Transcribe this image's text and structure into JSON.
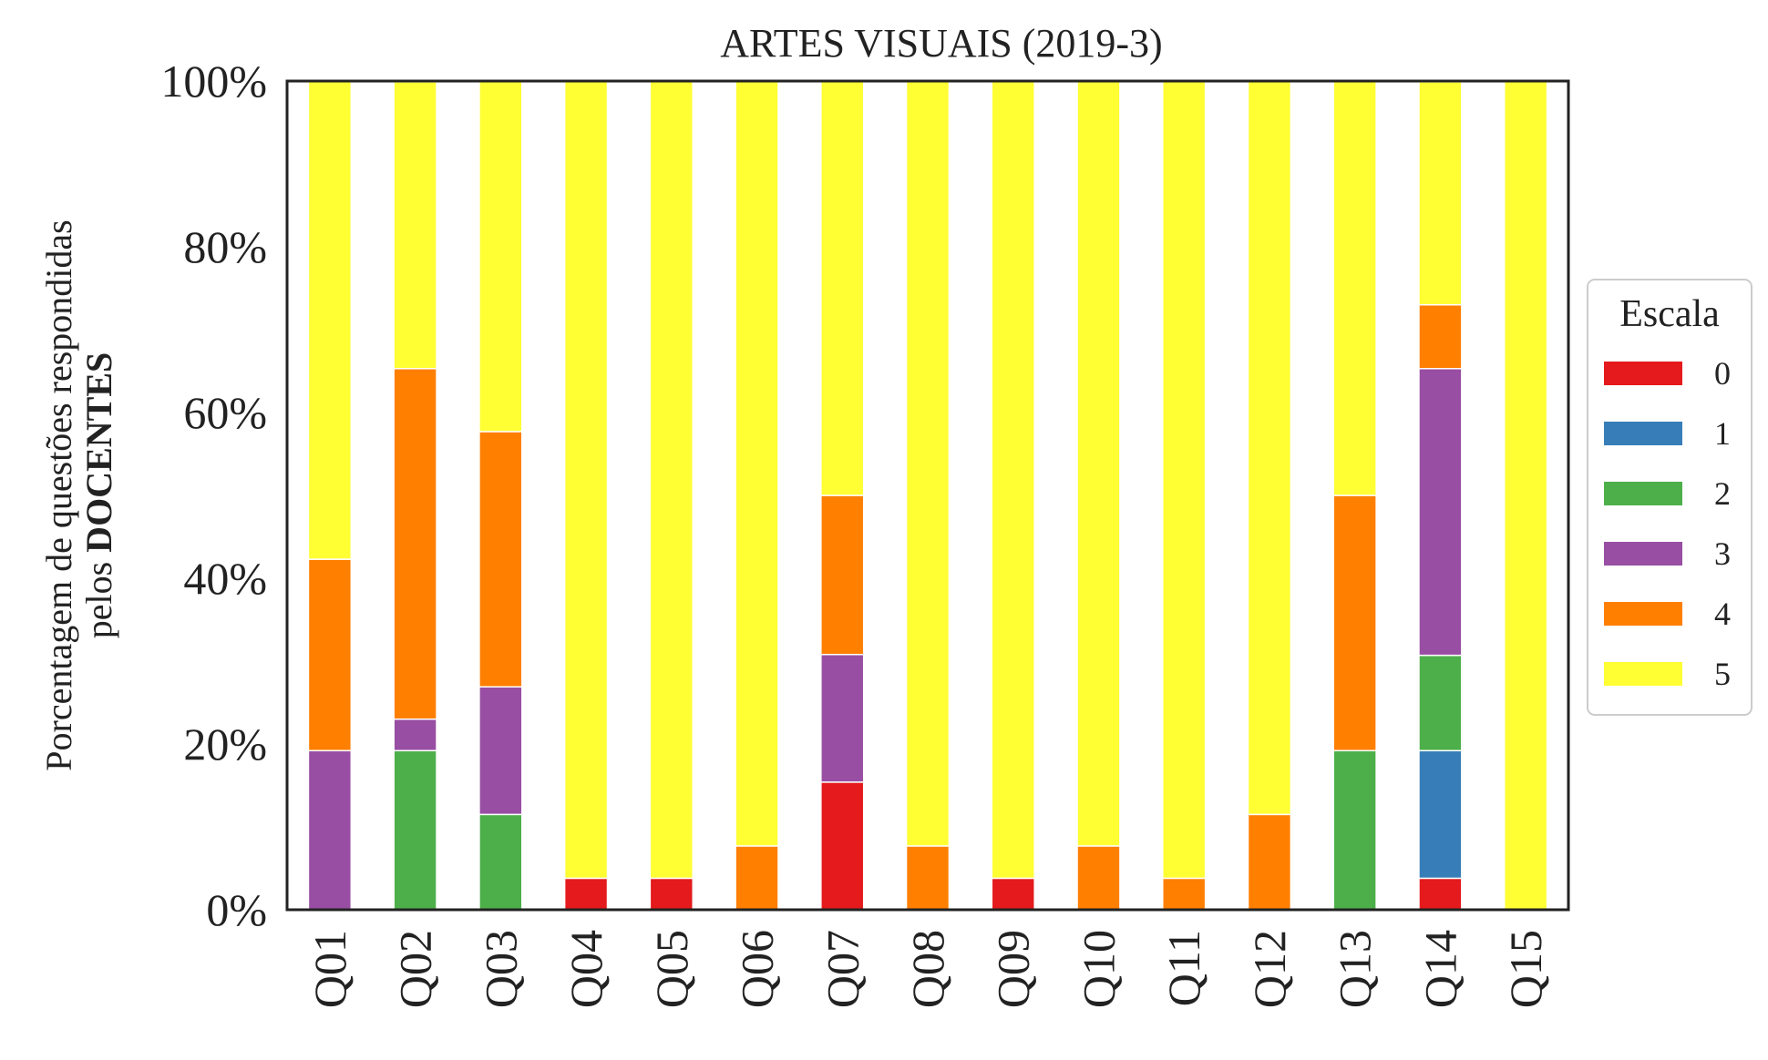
{
  "chart_data": {
    "type": "bar",
    "stacked": true,
    "title": "ARTES VISUAIS (2019-3)",
    "ylabel_line1": "Porcentagem de questões respondidas",
    "ylabel_line2_prefix": "pelos ",
    "ylabel_line2_bold": "DOCENTES",
    "xlabel": "",
    "ylim": [
      0,
      100
    ],
    "yticks": [
      "0%",
      "20%",
      "40%",
      "60%",
      "80%",
      "100%"
    ],
    "grid": false,
    "legend_title": "Escala",
    "legend_position": "right",
    "categories": [
      "Q01",
      "Q02",
      "Q03",
      "Q04",
      "Q05",
      "Q06",
      "Q07",
      "Q08",
      "Q09",
      "Q10",
      "Q11",
      "Q12",
      "Q13",
      "Q14",
      "Q15"
    ],
    "series": [
      {
        "name": "0",
        "color": "#e41a1c",
        "values": [
          0,
          0,
          0,
          3.8,
          3.8,
          0,
          15.4,
          0,
          3.8,
          0,
          0,
          0,
          0,
          3.8,
          0
        ]
      },
      {
        "name": "1",
        "color": "#377eb8",
        "values": [
          0,
          0,
          0,
          0,
          0,
          0,
          0,
          0,
          0,
          0,
          0,
          0,
          0,
          15.4,
          0
        ]
      },
      {
        "name": "2",
        "color": "#4daf4a",
        "values": [
          0,
          19.2,
          11.5,
          0,
          0,
          0,
          0,
          0,
          0,
          0,
          0,
          0,
          19.2,
          11.5,
          0
        ]
      },
      {
        "name": "3",
        "color": "#984ea3",
        "values": [
          19.2,
          3.8,
          15.4,
          0,
          0,
          0,
          15.4,
          0,
          0,
          0,
          0,
          0,
          0,
          34.6,
          0
        ]
      },
      {
        "name": "4",
        "color": "#ff7f00",
        "values": [
          23.1,
          42.3,
          30.8,
          0,
          0,
          7.7,
          19.2,
          7.7,
          0,
          7.7,
          3.8,
          11.5,
          30.8,
          7.7,
          0
        ]
      },
      {
        "name": "5",
        "color": "#ffff33",
        "values": [
          57.7,
          34.6,
          42.3,
          96.2,
          96.2,
          92.3,
          50.0,
          92.3,
          96.2,
          92.3,
          96.2,
          88.5,
          50.0,
          26.9,
          100
        ]
      }
    ]
  }
}
